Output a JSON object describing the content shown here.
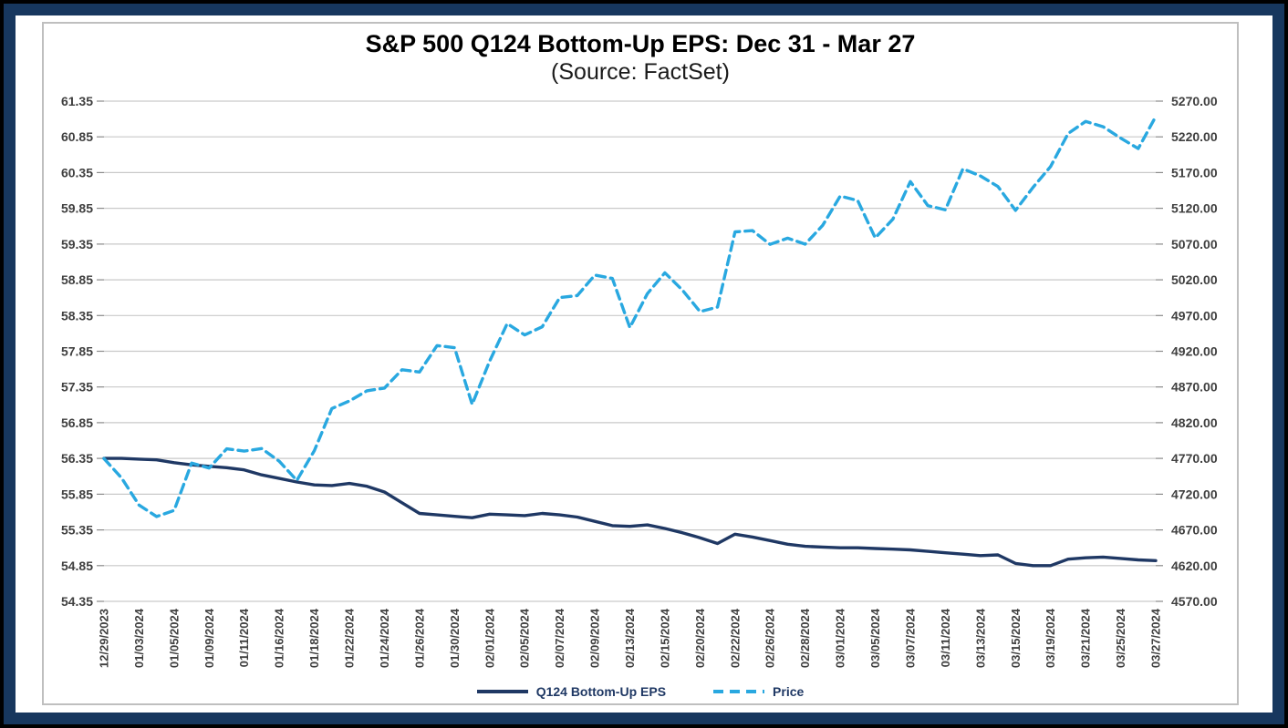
{
  "colors": {
    "frame_navy": "#17375E",
    "frame_black": "#000000",
    "panel_border": "#bfbfbf",
    "grid": "#c9c9c9",
    "tick": "#8a8a8a",
    "axis_text": "#3f3f3f",
    "legend_text": "#1F3864"
  },
  "chart_data": {
    "type": "line",
    "title": "S&P 500 Q124 Bottom-Up EPS: Dec 31 - Mar 27",
    "subtitle": "(Source: FactSet)",
    "grid": true,
    "legend_position": "bottom",
    "x_label_every": 2,
    "x": [
      "12/29/2023",
      "01/02/2024",
      "01/03/2024",
      "01/04/2024",
      "01/05/2024",
      "01/08/2024",
      "01/09/2024",
      "01/10/2024",
      "01/11/2024",
      "01/12/2024",
      "01/16/2024",
      "01/17/2024",
      "01/18/2024",
      "01/19/2024",
      "01/22/2024",
      "01/23/2024",
      "01/24/2024",
      "01/25/2024",
      "01/26/2024",
      "01/29/2024",
      "01/30/2024",
      "01/31/2024",
      "02/01/2024",
      "02/02/2024",
      "02/05/2024",
      "02/06/2024",
      "02/07/2024",
      "02/08/2024",
      "02/09/2024",
      "02/12/2024",
      "02/13/2024",
      "02/14/2024",
      "02/15/2024",
      "02/16/2024",
      "02/20/2024",
      "02/21/2024",
      "02/22/2024",
      "02/23/2024",
      "02/26/2024",
      "02/27/2024",
      "02/28/2024",
      "02/29/2024",
      "03/01/2024",
      "03/04/2024",
      "03/05/2024",
      "03/06/2024",
      "03/07/2024",
      "03/08/2024",
      "03/11/2024",
      "03/12/2024",
      "03/13/2024",
      "03/14/2024",
      "03/15/2024",
      "03/18/2024",
      "03/19/2024",
      "03/20/2024",
      "03/21/2024",
      "03/22/2024",
      "03/25/2024",
      "03/26/2024",
      "03/27/2024"
    ],
    "x_tick_labels": [
      "12/29/2023",
      "01/03/2024",
      "01/05/2024",
      "01/09/2024",
      "01/11/2024",
      "01/16/2024",
      "01/18/2024",
      "01/22/2024",
      "01/24/2024",
      "01/26/2024",
      "01/30/2024",
      "02/01/2024",
      "02/05/2024",
      "02/07/2024",
      "02/09/2024",
      "02/13/2024",
      "02/15/2024",
      "02/20/2024",
      "02/22/2024",
      "02/26/2024",
      "02/28/2024",
      "03/01/2024",
      "03/05/2024",
      "03/07/2024",
      "03/11/2024",
      "03/13/2024",
      "03/15/2024",
      "03/19/2024",
      "03/21/2024",
      "03/25/2024",
      "03/27/2024"
    ],
    "left_axis": {
      "min": 54.35,
      "max": 61.35,
      "step": 0.5,
      "tick_labels": [
        "61.35",
        "60.85",
        "60.35",
        "59.85",
        "59.35",
        "58.85",
        "58.35",
        "57.85",
        "57.35",
        "56.85",
        "56.35",
        "55.85",
        "55.35",
        "54.85",
        "54.35"
      ]
    },
    "right_axis": {
      "min": 4570,
      "max": 5270,
      "step": 50,
      "tick_labels": [
        "5270.00",
        "5220.00",
        "5170.00",
        "5120.00",
        "5070.00",
        "5020.00",
        "4970.00",
        "4920.00",
        "4870.00",
        "4820.00",
        "4770.00",
        "4720.00",
        "4670.00",
        "4620.00",
        "4570.00"
      ]
    },
    "series": [
      {
        "name": "Q124 Bottom-Up EPS",
        "axis": "left",
        "color": "#1F3864",
        "dashed": false,
        "values": [
          56.35,
          56.35,
          56.34,
          56.33,
          56.29,
          56.26,
          56.24,
          56.22,
          56.19,
          56.12,
          56.07,
          56.02,
          55.98,
          55.97,
          56.0,
          55.96,
          55.88,
          55.73,
          55.58,
          55.56,
          55.54,
          55.52,
          55.57,
          55.56,
          55.55,
          55.58,
          55.56,
          55.53,
          55.47,
          55.41,
          55.4,
          55.42,
          55.37,
          55.31,
          55.24,
          55.16,
          55.29,
          55.25,
          55.2,
          55.15,
          55.12,
          55.11,
          55.1,
          55.1,
          55.09,
          55.08,
          55.07,
          55.05,
          55.03,
          55.01,
          54.99,
          55.0,
          54.88,
          54.85,
          54.85,
          54.94,
          54.96,
          54.97,
          54.95,
          54.93,
          54.92
        ]
      },
      {
        "name": "Price",
        "axis": "right",
        "color": "#29A8E0",
        "dashed": true,
        "values": [
          4769.83,
          4742.83,
          4704.81,
          4688.68,
          4697.24,
          4763.54,
          4756.5,
          4783.45,
          4780.24,
          4783.83,
          4765.98,
          4739.21,
          4780.94,
          4839.81,
          4850.43,
          4864.6,
          4868.55,
          4894.16,
          4890.97,
          4927.93,
          4924.97,
          4845.65,
          4906.19,
          4958.61,
          4942.81,
          4954.23,
          4995.06,
          4997.91,
          5026.61,
          5021.84,
          4953.17,
          5000.62,
          5029.73,
          5005.57,
          4975.51,
          4981.8,
          5087.03,
          5088.8,
          5069.53,
          5078.18,
          5069.76,
          5096.27,
          5137.08,
          5130.95,
          5078.65,
          5104.76,
          5157.36,
          5123.69,
          5117.94,
          5175.27,
          5165.31,
          5150.48,
          5117.09,
          5149.42,
          5178.51,
          5224.62,
          5241.53,
          5234.18,
          5218.19,
          5203.58,
          5248.49
        ]
      }
    ]
  }
}
